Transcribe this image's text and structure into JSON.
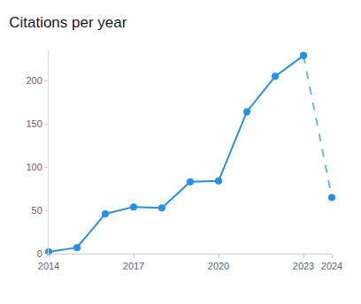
{
  "chart_data": {
    "type": "line",
    "title": "Citations per year",
    "x": [
      2014,
      2015,
      2016,
      2017,
      2018,
      2019,
      2020,
      2021,
      2022,
      2023,
      2024
    ],
    "series": [
      {
        "color": "#2190ef",
        "line_style": "solid",
        "marker": "circle",
        "values": [
          2,
          7,
          46,
          54,
          53,
          83,
          84,
          164,
          205,
          229,
          null
        ]
      },
      {
        "color": "#6db5f2",
        "line_style": "dash",
        "marker": "circle",
        "values": [
          null,
          null,
          null,
          null,
          null,
          null,
          null,
          null,
          null,
          229,
          65
        ]
      }
    ],
    "xlim": [
      2014,
      2024
    ],
    "xticks": [
      2014,
      2017,
      2020,
      2023,
      2024
    ],
    "ylim": [
      0,
      235
    ],
    "yticks": [
      0,
      50,
      100,
      150,
      200
    ],
    "grid": false
  }
}
